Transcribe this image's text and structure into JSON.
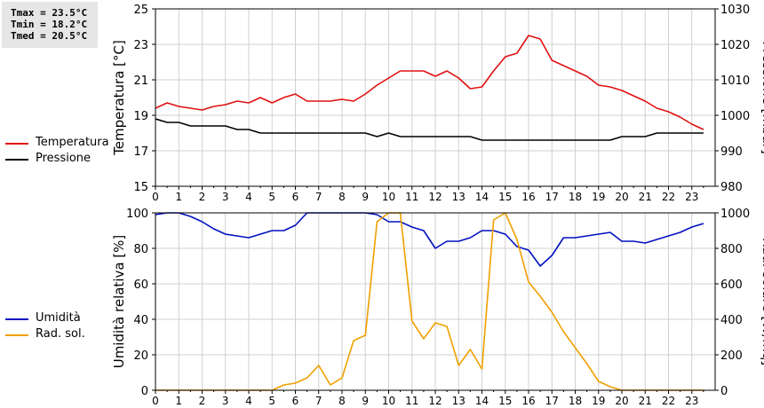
{
  "stats": {
    "tmax": "Tmax = 23.5°C",
    "tmin": "Tmin = 18.2°C",
    "tmed": "Tmed = 20.5°C"
  },
  "colors": {
    "temperatura": "#e01010",
    "pressione": "#000000",
    "umidita": "#0010c0",
    "radsol": "#f0a000",
    "grid": "#d0d0d0"
  },
  "legend_top": [
    {
      "label": "Temperatura",
      "color": "#e01010"
    },
    {
      "label": "Pressione",
      "color": "#000000"
    }
  ],
  "legend_bottom": [
    {
      "label": "Umidità",
      "color": "#0010c0"
    },
    {
      "label": "Rad. sol.",
      "color": "#f0a000"
    }
  ],
  "chart_data": [
    {
      "type": "line",
      "xlim": [
        0,
        24
      ],
      "xticks": [
        0,
        1,
        2,
        3,
        4,
        5,
        6,
        7,
        8,
        9,
        10,
        11,
        12,
        13,
        14,
        15,
        16,
        17,
        18,
        19,
        20,
        21,
        22,
        23
      ],
      "grid": true,
      "left_axis": {
        "label": "Temperatura [°C]",
        "ylim": [
          15,
          25
        ],
        "ticks": [
          15,
          17,
          19,
          21,
          23,
          25
        ]
      },
      "right_axis": {
        "label": "Pressione [mbar]",
        "ylim": [
          980,
          1030
        ],
        "ticks": [
          980,
          990,
          1000,
          1010,
          1020,
          1030
        ]
      },
      "series": [
        {
          "name": "Temperatura",
          "axis": "left",
          "color": "#e01010",
          "x": [
            0,
            0.5,
            1,
            1.5,
            2,
            2.5,
            3,
            3.5,
            4,
            4.5,
            5,
            5.5,
            6,
            6.5,
            7,
            7.5,
            8,
            8.5,
            9,
            9.5,
            10,
            10.5,
            11,
            11.5,
            12,
            12.5,
            13,
            13.5,
            14,
            14.5,
            15,
            15.5,
            16,
            16.5,
            17,
            17.5,
            18,
            18.5,
            19,
            19.5,
            20,
            20.5,
            21,
            21.5,
            22,
            22.5,
            23,
            23.5
          ],
          "y": [
            19.4,
            19.7,
            19.5,
            19.4,
            19.3,
            19.5,
            19.6,
            19.8,
            19.7,
            20.0,
            19.7,
            20.0,
            20.2,
            19.8,
            19.8,
            19.8,
            19.9,
            19.8,
            20.2,
            20.7,
            21.1,
            21.5,
            21.5,
            21.5,
            21.2,
            21.5,
            21.1,
            20.5,
            20.6,
            21.5,
            22.3,
            22.5,
            23.5,
            23.3,
            22.1,
            21.8,
            21.5,
            21.2,
            20.7,
            20.6,
            20.4,
            20.1,
            19.8,
            19.4,
            19.2,
            18.9,
            18.5,
            18.2
          ]
        },
        {
          "name": "Pressione",
          "axis": "right",
          "color": "#000000",
          "x": [
            0,
            0.5,
            1,
            1.5,
            2,
            2.5,
            3,
            3.5,
            4,
            4.5,
            5,
            5.5,
            6,
            6.5,
            7,
            7.5,
            8,
            8.5,
            9,
            9.5,
            10,
            10.5,
            11,
            11.5,
            12,
            12.5,
            13,
            13.5,
            14,
            14.5,
            15,
            15.5,
            16,
            16.5,
            17,
            17.5,
            18,
            18.5,
            19,
            19.5,
            20,
            20.5,
            21,
            21.5,
            22,
            22.5,
            23,
            23.5
          ],
          "y": [
            999,
            998,
            998,
            997,
            997,
            997,
            997,
            996,
            996,
            995,
            995,
            995,
            995,
            995,
            995,
            995,
            995,
            995,
            995,
            994,
            995,
            994,
            994,
            994,
            994,
            994,
            994,
            994,
            993,
            993,
            993,
            993,
            993,
            993,
            993,
            993,
            993,
            993,
            993,
            993,
            994,
            994,
            994,
            995,
            995,
            995,
            995,
            995
          ]
        }
      ]
    },
    {
      "type": "line",
      "xlim": [
        0,
        24
      ],
      "xticks": [
        0,
        1,
        2,
        3,
        4,
        5,
        6,
        7,
        8,
        9,
        10,
        11,
        12,
        13,
        14,
        15,
        16,
        17,
        18,
        19,
        20,
        21,
        22,
        23
      ],
      "grid": true,
      "left_axis": {
        "label": "Umidità relativa [%]",
        "ylim": [
          0,
          100
        ],
        "ticks": [
          0,
          20,
          40,
          60,
          80,
          100
        ]
      },
      "right_axis": {
        "label": "Rad. solare [W/mq]",
        "ylim": [
          0,
          1000
        ],
        "ticks": [
          0,
          200,
          400,
          600,
          800,
          1000
        ]
      },
      "series": [
        {
          "name": "Umidità",
          "axis": "left",
          "color": "#0010c0",
          "x": [
            0,
            0.5,
            1,
            1.5,
            2,
            2.5,
            3,
            3.5,
            4,
            4.5,
            5,
            5.5,
            6,
            6.5,
            7,
            7.5,
            8,
            8.5,
            9,
            9.5,
            10,
            10.5,
            11,
            11.5,
            12,
            12.5,
            13,
            13.5,
            14,
            14.5,
            15,
            15.5,
            16,
            16.5,
            17,
            17.5,
            18,
            18.5,
            19,
            19.5,
            20,
            20.5,
            21,
            21.5,
            22,
            22.5,
            23,
            23.5
          ],
          "y": [
            99,
            100,
            100,
            98,
            95,
            91,
            88,
            87,
            86,
            88,
            90,
            90,
            93,
            100,
            100,
            100,
            100,
            100,
            100,
            99,
            95,
            95,
            92,
            90,
            80,
            84,
            84,
            86,
            90,
            90,
            88,
            81,
            79,
            70,
            76,
            86,
            86,
            87,
            88,
            89,
            84,
            84,
            83,
            85,
            87,
            89,
            92,
            94
          ]
        },
        {
          "name": "Rad. sol.",
          "axis": "right",
          "color": "#f0a000",
          "x": [
            0,
            0.5,
            1,
            1.5,
            2,
            2.5,
            3,
            3.5,
            4,
            4.5,
            5,
            5.5,
            6,
            6.5,
            7,
            7.5,
            8,
            8.5,
            9,
            9.5,
            10,
            10.5,
            11,
            11.5,
            12,
            12.5,
            13,
            13.5,
            14,
            14.5,
            15,
            15.5,
            16,
            16.5,
            17,
            17.5,
            18,
            18.5,
            19,
            19.5,
            20,
            20.5,
            21,
            21.5,
            22,
            22.5,
            23,
            23.5
          ],
          "y": [
            0,
            0,
            0,
            0,
            0,
            0,
            0,
            0,
            0,
            0,
            0,
            30,
            40,
            70,
            140,
            30,
            70,
            280,
            310,
            950,
            1000,
            1000,
            390,
            290,
            380,
            360,
            140,
            230,
            120,
            960,
            1000,
            850,
            610,
            530,
            440,
            330,
            240,
            150,
            50,
            20,
            0,
            0,
            0,
            0,
            0,
            0,
            0,
            0
          ]
        }
      ]
    }
  ]
}
